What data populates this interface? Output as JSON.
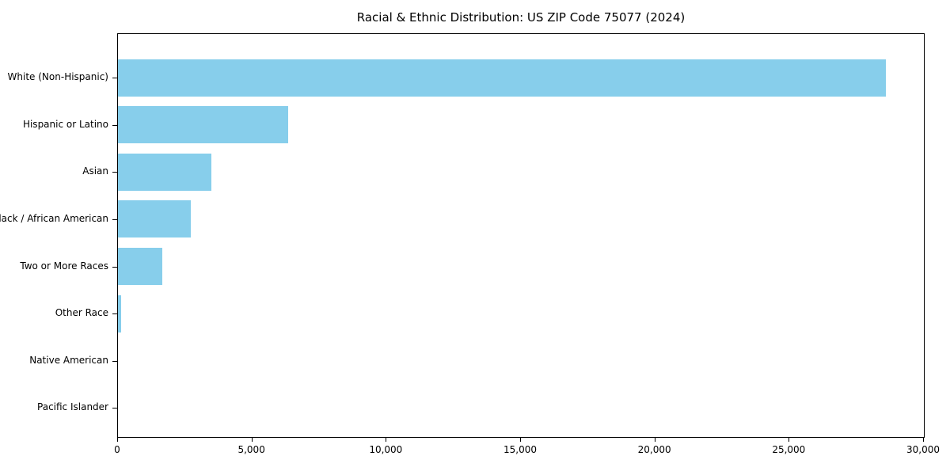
{
  "chart_data": {
    "type": "bar",
    "orientation": "horizontal",
    "title": "Racial & Ethnic Distribution: US ZIP Code 75077 (2024)",
    "categories": [
      "White (Non-Hispanic)",
      "Hispanic or Latino",
      "Asian",
      "Black / African American",
      "Two or More Races",
      "Other Race",
      "Native American",
      "Pacific Islander"
    ],
    "values": [
      28600,
      6350,
      3480,
      2710,
      1650,
      120,
      0,
      0
    ],
    "xlabel": "",
    "ylabel": "",
    "xlim": [
      0,
      30000
    ],
    "xticks": [
      {
        "value": 0,
        "label": "0"
      },
      {
        "value": 5000,
        "label": "5,000"
      },
      {
        "value": 10000,
        "label": "10,000"
      },
      {
        "value": 15000,
        "label": "15,000"
      },
      {
        "value": 20000,
        "label": "20,000"
      },
      {
        "value": 25000,
        "label": "25,000"
      },
      {
        "value": 30000,
        "label": "30,000"
      }
    ],
    "bar_color": "#87CEEB",
    "axis_color": "#000000",
    "text_color": "#000000",
    "background_color": "#ffffff",
    "grid": false,
    "legend": false
  }
}
